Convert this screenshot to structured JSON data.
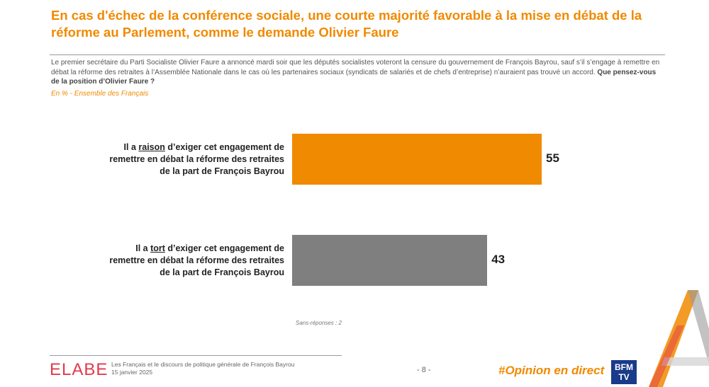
{
  "header": {
    "title": "En cas d'échec de la conférence sociale, une courte majorité favorable à la mise en débat de la réforme au Parlement, comme le demande Olivier Faure",
    "intro": "Le premier secrétaire du Parti Socialiste Olivier Faure a annoncé mardi soir que les députés socialistes voteront la censure du gouvernement de François Bayrou, sauf s’il s’engage à remettre en débat la réforme des retraites à l’Assemblée Nationale dans le cas où les partenaires sociaux (syndicats de salariés et de chefs d’entreprise) n’auraient pas trouvé un accord.",
    "question": "Que pensez-vous de la position d’Olivier Faure ?",
    "subtitle": "En % - Ensemble des Français"
  },
  "chart_data": {
    "type": "bar",
    "orientation": "horizontal",
    "categories": [
      {
        "prefix": "Il a ",
        "keyword": "raison",
        "suffix": " d’exiger cet engagement de remettre en débat la réforme des retraites de la part de François Bayrou"
      },
      {
        "prefix": "Il a ",
        "keyword": "tort",
        "suffix": " d’exiger cet engagement de remettre en débat la réforme des retraites de la part de François Bayrou"
      }
    ],
    "values": [
      55,
      43
    ],
    "value_labels": [
      "55",
      "43"
    ],
    "colors": [
      "#f08a00",
      "#7f7f7f"
    ],
    "xlim": [
      0,
      100
    ],
    "grid": false,
    "legend": "none",
    "note": "Sans-réponses : 2"
  },
  "footer": {
    "logo": "ELABE",
    "study_title": "Les Français et le discours de politique générale de François Bayrou",
    "date": "15 janvier 2025",
    "page": "- 8 -",
    "hashtag": "#Opinion en direct",
    "partner_logo": "BFM TV",
    "partner_logo_line1": "BFM",
    "partner_logo_line2": "TV"
  }
}
